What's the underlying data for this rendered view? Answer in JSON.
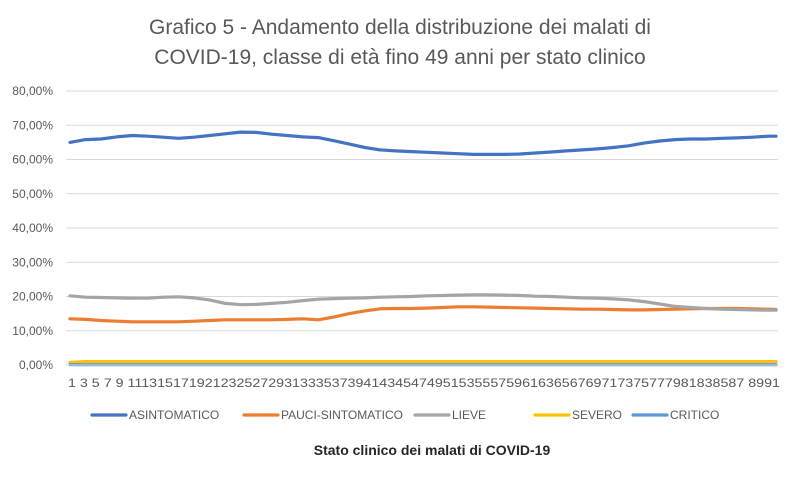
{
  "chart_data": {
    "type": "line",
    "title_lines": [
      "Grafico 5 - Andamento della distribuzione dei malati di",
      "COVID-19, classe di età fino 49 anni per stato clinico"
    ],
    "xlabel": "Stato clinico dei malati di COVID-19",
    "ylabel": "",
    "ylim": [
      0,
      80
    ],
    "y_ticks": [
      "0,00%",
      "10,00%",
      "20,00%",
      "30,00%",
      "40,00%",
      "50,00%",
      "60,00%",
      "70,00%",
      "80,00%"
    ],
    "x": [
      1,
      92
    ],
    "x_tick_label_text": "1 3 5 7 9 111315171921232527293133353739414345474951535557596163656769717375777981838587 8991",
    "grid": true,
    "legend_position": "bottom",
    "series": [
      {
        "name": "ASINTOMATICO",
        "color": "#4472C4",
        "points": [
          [
            1,
            65
          ],
          [
            3,
            65.8
          ],
          [
            5,
            66
          ],
          [
            7,
            66.6
          ],
          [
            9,
            67
          ],
          [
            11,
            66.8
          ],
          [
            13,
            66.5
          ],
          [
            15,
            66.2
          ],
          [
            17,
            66.5
          ],
          [
            19,
            67
          ],
          [
            21,
            67.5
          ],
          [
            23,
            68
          ],
          [
            25,
            67.9
          ],
          [
            27,
            67.4
          ],
          [
            29,
            67
          ],
          [
            31,
            66.6
          ],
          [
            33,
            66.4
          ],
          [
            35,
            65.5
          ],
          [
            37,
            64.5
          ],
          [
            39,
            63.5
          ],
          [
            41,
            62.8
          ],
          [
            43,
            62.5
          ],
          [
            45,
            62.3
          ],
          [
            47,
            62.1
          ],
          [
            49,
            61.9
          ],
          [
            51,
            61.7
          ],
          [
            53,
            61.5
          ],
          [
            55,
            61.5
          ],
          [
            57,
            61.5
          ],
          [
            59,
            61.6
          ],
          [
            61,
            61.9
          ],
          [
            63,
            62.2
          ],
          [
            65,
            62.5
          ],
          [
            67,
            62.8
          ],
          [
            69,
            63.1
          ],
          [
            71,
            63.5
          ],
          [
            73,
            64
          ],
          [
            75,
            64.8
          ],
          [
            77,
            65.4
          ],
          [
            79,
            65.8
          ],
          [
            81,
            66
          ],
          [
            83,
            66
          ],
          [
            85,
            66.2
          ],
          [
            87,
            66.3
          ],
          [
            89,
            66.5
          ],
          [
            91,
            66.8
          ],
          [
            92,
            66.8
          ]
        ]
      },
      {
        "name": "PAUCI-SINTOMATICO",
        "color": "#ED7D31",
        "points": [
          [
            1,
            13.5
          ],
          [
            3,
            13.3
          ],
          [
            5,
            13
          ],
          [
            7,
            12.8
          ],
          [
            9,
            12.6
          ],
          [
            11,
            12.6
          ],
          [
            13,
            12.6
          ],
          [
            15,
            12.6
          ],
          [
            17,
            12.8
          ],
          [
            19,
            13
          ],
          [
            21,
            13.2
          ],
          [
            23,
            13.2
          ],
          [
            25,
            13.2
          ],
          [
            27,
            13.2
          ],
          [
            29,
            13.3
          ],
          [
            31,
            13.5
          ],
          [
            33,
            13.2
          ],
          [
            35,
            14
          ],
          [
            37,
            15
          ],
          [
            39,
            15.8
          ],
          [
            41,
            16.4
          ],
          [
            43,
            16.5
          ],
          [
            45,
            16.5
          ],
          [
            47,
            16.6
          ],
          [
            49,
            16.8
          ],
          [
            51,
            17
          ],
          [
            53,
            17
          ],
          [
            55,
            16.9
          ],
          [
            57,
            16.8
          ],
          [
            59,
            16.7
          ],
          [
            61,
            16.6
          ],
          [
            63,
            16.5
          ],
          [
            65,
            16.4
          ],
          [
            67,
            16.3
          ],
          [
            69,
            16.3
          ],
          [
            71,
            16.2
          ],
          [
            73,
            16.1
          ],
          [
            75,
            16.1
          ],
          [
            77,
            16.2
          ],
          [
            79,
            16.3
          ],
          [
            81,
            16.4
          ],
          [
            83,
            16.5
          ],
          [
            85,
            16.5
          ],
          [
            87,
            16.5
          ],
          [
            89,
            16.4
          ],
          [
            91,
            16.3
          ],
          [
            92,
            16.2
          ]
        ]
      },
      {
        "name": "LIEVE",
        "color": "#A5A5A5",
        "points": [
          [
            1,
            20.2
          ],
          [
            3,
            19.8
          ],
          [
            5,
            19.7
          ],
          [
            7,
            19.6
          ],
          [
            9,
            19.5
          ],
          [
            11,
            19.5
          ],
          [
            13,
            19.8
          ],
          [
            15,
            19.9
          ],
          [
            17,
            19.6
          ],
          [
            19,
            19
          ],
          [
            21,
            18
          ],
          [
            23,
            17.6
          ],
          [
            25,
            17.7
          ],
          [
            27,
            18
          ],
          [
            29,
            18.3
          ],
          [
            31,
            18.8
          ],
          [
            33,
            19.2
          ],
          [
            35,
            19.4
          ],
          [
            37,
            19.5
          ],
          [
            39,
            19.6
          ],
          [
            41,
            19.8
          ],
          [
            43,
            19.9
          ],
          [
            45,
            20
          ],
          [
            47,
            20.2
          ],
          [
            49,
            20.3
          ],
          [
            51,
            20.4
          ],
          [
            53,
            20.5
          ],
          [
            55,
            20.5
          ],
          [
            57,
            20.4
          ],
          [
            59,
            20.3
          ],
          [
            61,
            20.1
          ],
          [
            63,
            20
          ],
          [
            65,
            19.8
          ],
          [
            67,
            19.6
          ],
          [
            69,
            19.5
          ],
          [
            71,
            19.3
          ],
          [
            73,
            19
          ],
          [
            75,
            18.5
          ],
          [
            77,
            17.8
          ],
          [
            79,
            17.1
          ],
          [
            81,
            16.8
          ],
          [
            83,
            16.5
          ],
          [
            85,
            16.3
          ],
          [
            87,
            16.2
          ],
          [
            89,
            16.1
          ],
          [
            91,
            16
          ],
          [
            92,
            16
          ]
        ]
      },
      {
        "name": "SEVERO",
        "color": "#FFC000",
        "points": [
          [
            1,
            0.8
          ],
          [
            3,
            1
          ],
          [
            10,
            1
          ],
          [
            20,
            1
          ],
          [
            30,
            1
          ],
          [
            40,
            1
          ],
          [
            50,
            1
          ],
          [
            60,
            1
          ],
          [
            70,
            1
          ],
          [
            80,
            1
          ],
          [
            90,
            1
          ],
          [
            92,
            1
          ]
        ]
      },
      {
        "name": "CRITICO",
        "color": "#5B9BD5",
        "points": [
          [
            1,
            0.1
          ],
          [
            10,
            0.1
          ],
          [
            20,
            0.1
          ],
          [
            30,
            0.1
          ],
          [
            40,
            0.1
          ],
          [
            50,
            0.1
          ],
          [
            60,
            0.1
          ],
          [
            70,
            0.1
          ],
          [
            80,
            0.1
          ],
          [
            92,
            0.1
          ]
        ]
      }
    ]
  }
}
